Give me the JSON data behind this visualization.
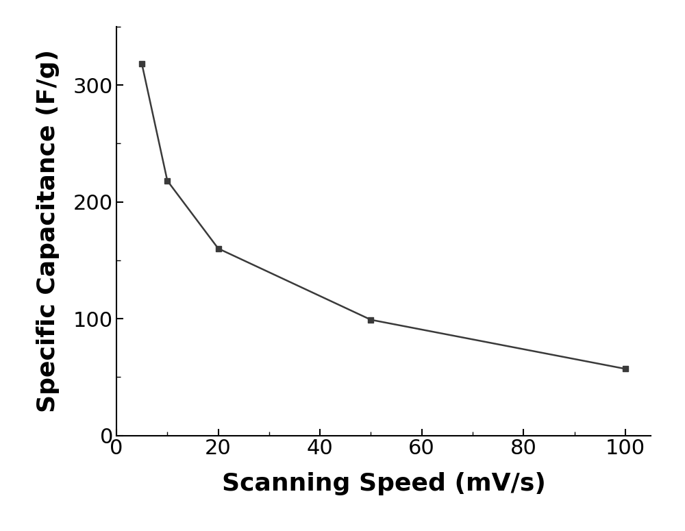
{
  "x": [
    5,
    10,
    20,
    50,
    100
  ],
  "y": [
    318,
    218,
    160,
    99,
    57
  ],
  "line_color": "#3a3a3a",
  "marker": "s",
  "marker_size": 6,
  "marker_color": "#3a3a3a",
  "line_width": 1.8,
  "xlabel": "Scanning Speed (mV/s)",
  "ylabel": "Specific Capacitance (F/g)",
  "xlim": [
    0,
    105
  ],
  "ylim": [
    0,
    350
  ],
  "xticks": [
    0,
    20,
    40,
    60,
    80,
    100
  ],
  "yticks": [
    0,
    100,
    200,
    300
  ],
  "xlabel_fontsize": 26,
  "ylabel_fontsize": 26,
  "tick_fontsize": 22,
  "background_color": "#ffffff",
  "figure_background": "#ffffff"
}
